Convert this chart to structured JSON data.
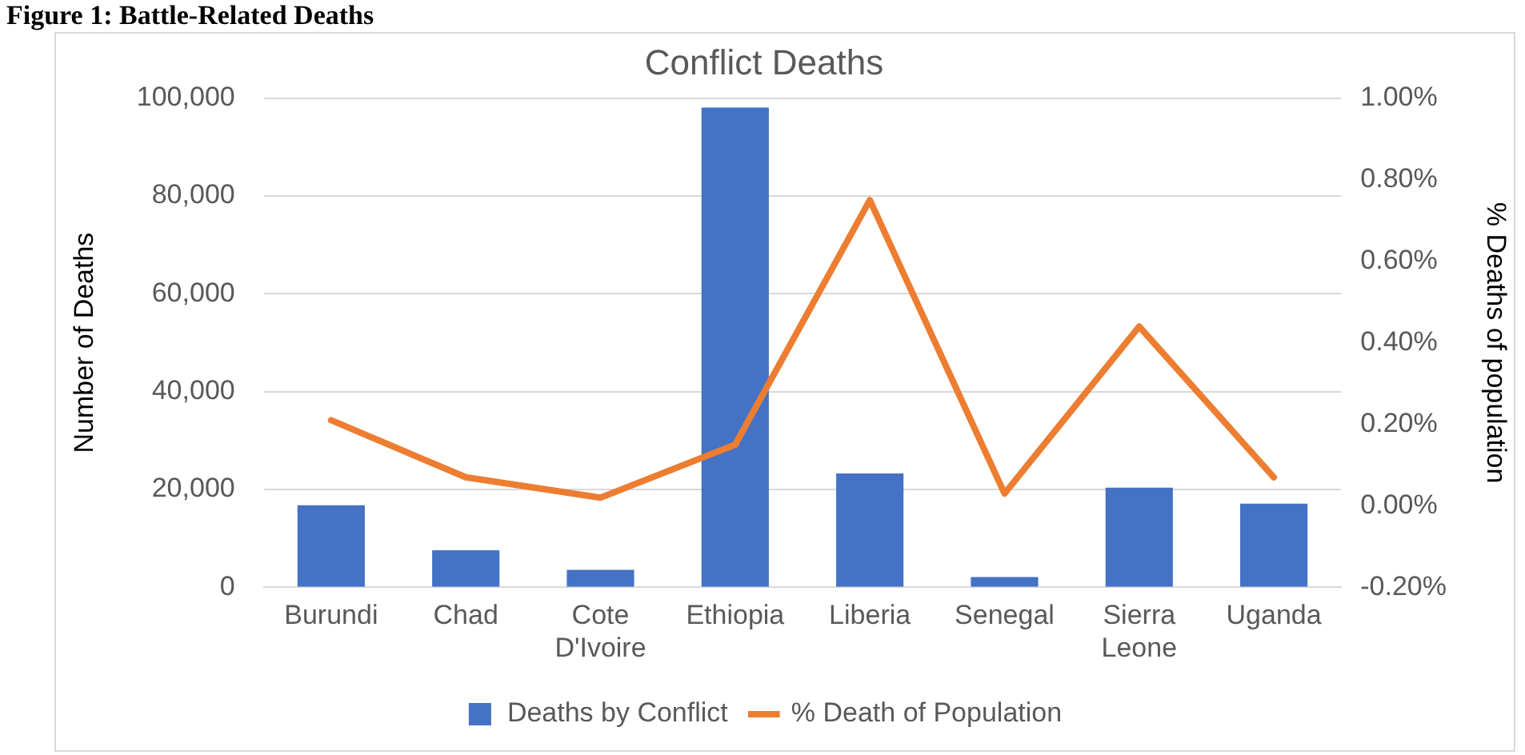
{
  "chart_data": {
    "type": "bar",
    "title": "Conflict Deaths",
    "ylabel": "Number of Deaths",
    "y2label": "% Deaths of population",
    "annotations": [
      "Figure 1: Battle-Related Deaths"
    ],
    "categories": [
      "Burundi",
      "Chad",
      "Cote D'Ivoire",
      "Ethiopia",
      "Liberia",
      "Senegal",
      "Sierra Leone",
      "Uganda"
    ],
    "series": [
      {
        "name": "Deaths by Conflict",
        "color": "#4472c4",
        "values": [
          16800,
          7600,
          3600,
          98100,
          23300,
          2100,
          20400,
          17100
        ]
      },
      {
        "name": "% Death of Population",
        "type": "line",
        "axis": "y2",
        "color": "#ed7d31",
        "values": [
          0.21,
          0.07,
          0.02,
          0.15,
          0.75,
          0.03,
          0.44,
          0.07
        ]
      }
    ],
    "ylim": [
      0,
      100000
    ],
    "yticks": [
      {
        "value": 0,
        "label": "0"
      },
      {
        "value": 20000,
        "label": "20,000"
      },
      {
        "value": 40000,
        "label": "40,000"
      },
      {
        "value": 60000,
        "label": "60,000"
      },
      {
        "value": 80000,
        "label": "80,000"
      },
      {
        "value": 100000,
        "label": "100,000"
      }
    ],
    "y2lim": [
      -0.2,
      1.0
    ],
    "y2ticks": [
      {
        "value": -0.2,
        "label": "-0.20%"
      },
      {
        "value": 0,
        "label": "0.00%"
      },
      {
        "value": 0.2,
        "label": "0.20%"
      },
      {
        "value": 0.4,
        "label": "0.40%"
      },
      {
        "value": 0.6,
        "label": "0.60%"
      },
      {
        "value": 0.8,
        "label": "0.80%"
      },
      {
        "value": 1.0,
        "label": "1.00%"
      }
    ],
    "grid": "y",
    "legend": "bottom",
    "marker": "none",
    "line_style": "solid"
  }
}
